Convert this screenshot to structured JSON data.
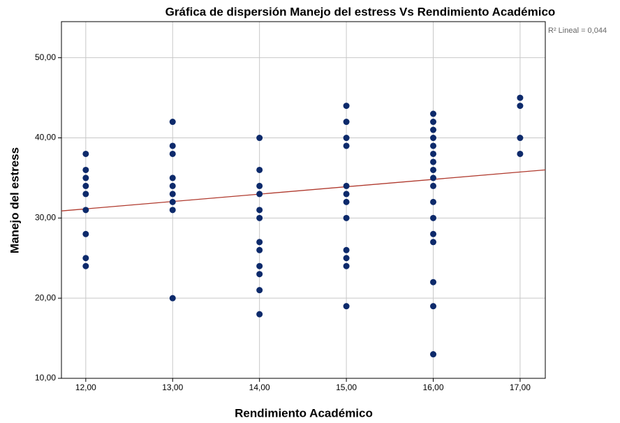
{
  "chart_data": {
    "type": "scatter",
    "title": "Gráfica de dispersión Manejo del estress Vs Rendimiento Académico",
    "x_label": "Rendimiento Académico",
    "y_label": "Manejo del estress",
    "annotation": "R² Lineal = 0,044",
    "xlim": [
      11.72,
      17.29
    ],
    "ylim": [
      10,
      54.5
    ],
    "xticks": [
      {
        "value": 12,
        "label": "12,00"
      },
      {
        "value": 13,
        "label": "13,00"
      },
      {
        "value": 14,
        "label": "14,00"
      },
      {
        "value": 15,
        "label": "15,00"
      },
      {
        "value": 16,
        "label": "16,00"
      },
      {
        "value": 17,
        "label": "17,00"
      }
    ],
    "yticks": [
      {
        "value": 10,
        "label": "10,00"
      },
      {
        "value": 20,
        "label": "20,00"
      },
      {
        "value": 30,
        "label": "30,00"
      },
      {
        "value": 40,
        "label": "40,00"
      },
      {
        "value": 50,
        "label": "50,00"
      }
    ],
    "grid": true,
    "fit": {
      "intercept": 20.1,
      "slope": 0.92,
      "color": "#b03a2e"
    },
    "series": [
      {
        "color": "#0d2a6b",
        "x": [
          12,
          12,
          12,
          12,
          12,
          12,
          12,
          12,
          12,
          13,
          13,
          13,
          13,
          13,
          13,
          13,
          13,
          13,
          14,
          14,
          14,
          14,
          14,
          14,
          14,
          14,
          14,
          14,
          14,
          14,
          15,
          15,
          15,
          15,
          15,
          15,
          15,
          15,
          15,
          15,
          15,
          15,
          16,
          16,
          16,
          16,
          16,
          16,
          16,
          16,
          16,
          16,
          16,
          16,
          16,
          16,
          16,
          16,
          16,
          17,
          17,
          17,
          17
        ],
        "values": [
          38,
          36,
          35,
          34,
          33,
          31,
          28,
          25,
          24,
          42,
          39,
          38,
          35,
          34,
          33,
          32,
          31,
          20,
          40,
          36,
          34,
          33,
          31,
          30,
          27,
          26,
          24,
          23,
          21,
          18,
          44,
          42,
          40,
          39,
          34,
          33,
          32,
          30,
          26,
          25,
          24,
          19,
          43,
          42,
          41,
          40,
          39,
          38,
          37,
          36,
          35,
          34,
          32,
          30,
          28,
          27,
          22,
          19,
          13,
          45,
          44,
          40,
          38
        ]
      }
    ]
  }
}
